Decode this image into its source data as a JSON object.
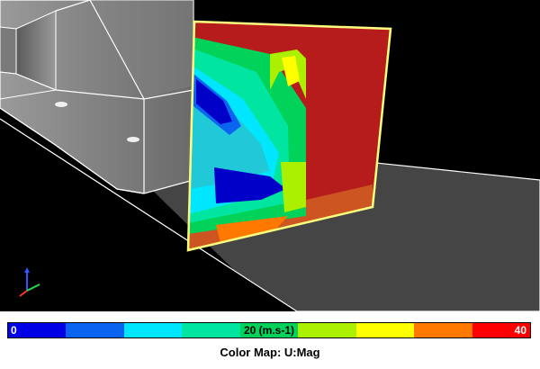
{
  "colormap": {
    "min_label": "0",
    "mid_label": "20 (m.s-1)",
    "max_label": "40",
    "title": "Color Map: U:Mag",
    "colors": [
      "#0000e6",
      "#0a64f0",
      "#00e6ff",
      "#00e6a0",
      "#00d25a",
      "#aaf000",
      "#ffff00",
      "#ff7800",
      "#ff0000"
    ]
  },
  "scene": {
    "icons": [
      "vehicle-body-wireframe",
      "ground-plane",
      "slice-plane",
      "axis-triad-icon"
    ]
  }
}
